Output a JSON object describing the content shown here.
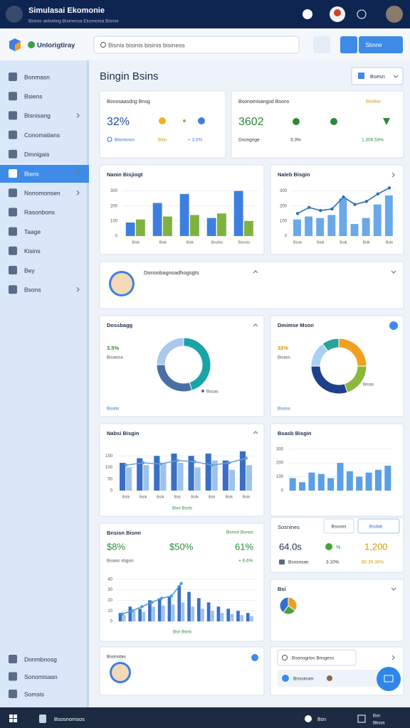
{
  "header": {
    "title": "Simulasai Ekomonie",
    "subtitle": "Bisinis aktiviting Bisinessa Ekomonia Bisinis"
  },
  "toolbar": {
    "brand": "Unlorigtiray",
    "search": "Bisnis bisinis bisinis bisiness",
    "button": "Sbnne"
  },
  "sidebar": {
    "items": [
      "Bonmasn",
      "Bsiens",
      "Bisnisang",
      "Conomatians",
      "Dmnigais",
      "Bisns",
      "Nonomonsen",
      "Rasonbons",
      "Taage",
      "Kisins",
      "Bey",
      "Bsons"
    ],
    "footer_items": [
      "Donmbnosg",
      "Sonomisasn",
      "Somsis"
    ]
  },
  "page": {
    "title": "Bingin Bsins",
    "button": "Bsesn"
  },
  "kpi_cards": [
    {
      "title": "Bonosaasdng Bnsg",
      "value": "32%",
      "note": "Bisnisnos",
      "chip1": "Bisn",
      "chip2": "+ 3.5%"
    },
    {
      "title": "Bsonomisangsd Bsons",
      "tag": "Bsolias",
      "value": "3602",
      "note": "Dsongnge",
      "chip1": "3.3%",
      "chip2": "1,306.53%"
    }
  ],
  "profile": {
    "text": "Donoobagnoadhogsgts"
  },
  "charts": [
    {
      "type": "bar",
      "title": "Nanin Bisjiogt",
      "categories": [
        "Bisk",
        "Bisk",
        "Bisk",
        "Bnsbis",
        "Bsnsis"
      ],
      "series": [
        {
          "color": "#3d7fe0",
          "values": [
            90,
            220,
            280,
            120,
            300
          ]
        },
        {
          "color": "#7fb23f",
          "values": [
            110,
            130,
            140,
            150,
            100
          ]
        }
      ],
      "ylim": [
        0,
        350
      ],
      "yticks": [
        0,
        100,
        200,
        300
      ],
      "grid": true
    },
    {
      "type": "combo",
      "title": "Naleb Bisgin",
      "categories": [
        "Bsok",
        null,
        "Bsik",
        null,
        "Bsik",
        null,
        "Bsik",
        null,
        "Bsik"
      ],
      "series": [
        {
          "kind": "bar",
          "color": "#6aa8e8",
          "values": [
            110,
            130,
            120,
            140,
            250,
            80,
            120,
            210,
            270
          ]
        },
        {
          "kind": "line",
          "color": "#2c6fb8",
          "values": [
            150,
            190,
            170,
            180,
            260,
            210,
            230,
            280,
            320
          ]
        }
      ],
      "ylim": [
        0,
        350
      ],
      "yticks": [
        0,
        100,
        200,
        300
      ],
      "grid": true
    },
    {
      "type": "donut",
      "title": "Dossbagg",
      "value_text": "3.5%",
      "caption": "Bisaiosa",
      "slice_label": "Bsoas",
      "footer": "Bsstis",
      "values": [
        45,
        30,
        25
      ],
      "colors": [
        "#1aa3a8",
        "#4a6fa5",
        "#a8c8ec"
      ]
    },
    {
      "type": "donut",
      "title": "Dmimse Mson",
      "value_text": "33%",
      "caption": "Bisaos",
      "slice_label": "Bnois",
      "footer": "Bsoss",
      "values": [
        25,
        20,
        30,
        15,
        10
      ],
      "colors": [
        "#f0a020",
        "#8ab83a",
        "#1e3f8a",
        "#a8d0f0",
        "#2aa39a"
      ]
    },
    {
      "type": "combo",
      "title": "Nabsi Bisgin",
      "footer": "Bsnl Bsnis",
      "categories": [
        "Bsik",
        "Bsik",
        "Bsik",
        "Bsk",
        "Bsik",
        "Bsk",
        "Bsik",
        "Bsik"
      ],
      "series": [
        {
          "kind": "bar",
          "color": "#3a6fc4",
          "values": [
            120,
            140,
            150,
            160,
            150,
            160,
            130,
            170
          ]
        },
        {
          "kind": "bar",
          "color": "#9cc3ec",
          "values": [
            100,
            110,
            120,
            120,
            100,
            130,
            90,
            110
          ]
        },
        {
          "kind": "line",
          "color": "#6aa0d8",
          "values": [
            110,
            120,
            115,
            130,
            125,
            110,
            120,
            140
          ]
        }
      ],
      "ylim": [
        0,
        200
      ],
      "yticks": [
        0,
        50,
        100,
        150
      ],
      "grid": true
    },
    {
      "type": "bar",
      "title": "Bsasb Bisgin",
      "categories": [
        null,
        null,
        null,
        null,
        null,
        null,
        null,
        null,
        null,
        null,
        null
      ],
      "series": [
        {
          "color": "#5b9fe6",
          "values": [
            90,
            60,
            130,
            120,
            90,
            200,
            140,
            100,
            130,
            150,
            180
          ]
        }
      ],
      "ylim": [
        0,
        350
      ],
      "yticks": [
        0,
        100,
        200,
        300
      ],
      "grid": true
    },
    {
      "type": "combo",
      "title": "Bnsisn Bisnn",
      "legend_tag": "Bsnsn Bsnos",
      "kpis": [
        "$8%",
        "$50%",
        "61%"
      ],
      "caption": "Bsaas sbgon",
      "change": "+ 6.6%",
      "footer": "Bsn Bsnb",
      "categories": [
        null,
        null,
        null,
        null,
        null,
        null,
        null,
        null,
        null,
        null,
        null,
        null,
        null,
        null
      ],
      "series": [
        {
          "kind": "bar",
          "color": "#3a6fc4",
          "values": [
            8,
            14,
            12,
            20,
            22,
            24,
            34,
            28,
            22,
            18,
            14,
            12,
            10,
            8
          ]
        },
        {
          "kind": "bar",
          "color": "#9cc3ec",
          "values": [
            6,
            10,
            9,
            14,
            15,
            16,
            18,
            14,
            12,
            10,
            8,
            7,
            6,
            5
          ]
        },
        {
          "kind": "line",
          "color": "#4aa0d8",
          "values": [
            7,
            10,
            14,
            18,
            22,
            24,
            36,
            null,
            null,
            null,
            null,
            null,
            null,
            null
          ]
        }
      ],
      "ylim": [
        0,
        50
      ],
      "yticks": [
        0,
        10,
        20,
        30,
        40
      ],
      "grid": true
    },
    {
      "type": "pie",
      "title": "Bsi",
      "values": [
        35,
        25,
        40
      ],
      "colors": [
        "#f0a020",
        "#4aa23a",
        "#2f6fd0"
      ]
    }
  ],
  "stats": {
    "title": "Sosnlnes",
    "btn1": "Bsssns",
    "btn2": "Bsdab",
    "v1": "64.0s",
    "v2": "%",
    "v3": "1,200",
    "n1": "Bsosnsan",
    "n2": "3.10%",
    "n3": "$0.39.30%"
  },
  "bottom": {
    "left": "Bsonstas",
    "search": "Bsonogrlos Bnsgess",
    "item": "Bnssinom"
  },
  "footer": {
    "left": "Bsosnomsos",
    "r1": "Bsn",
    "r2": "Bsn",
    "r3": "Bbsos"
  }
}
